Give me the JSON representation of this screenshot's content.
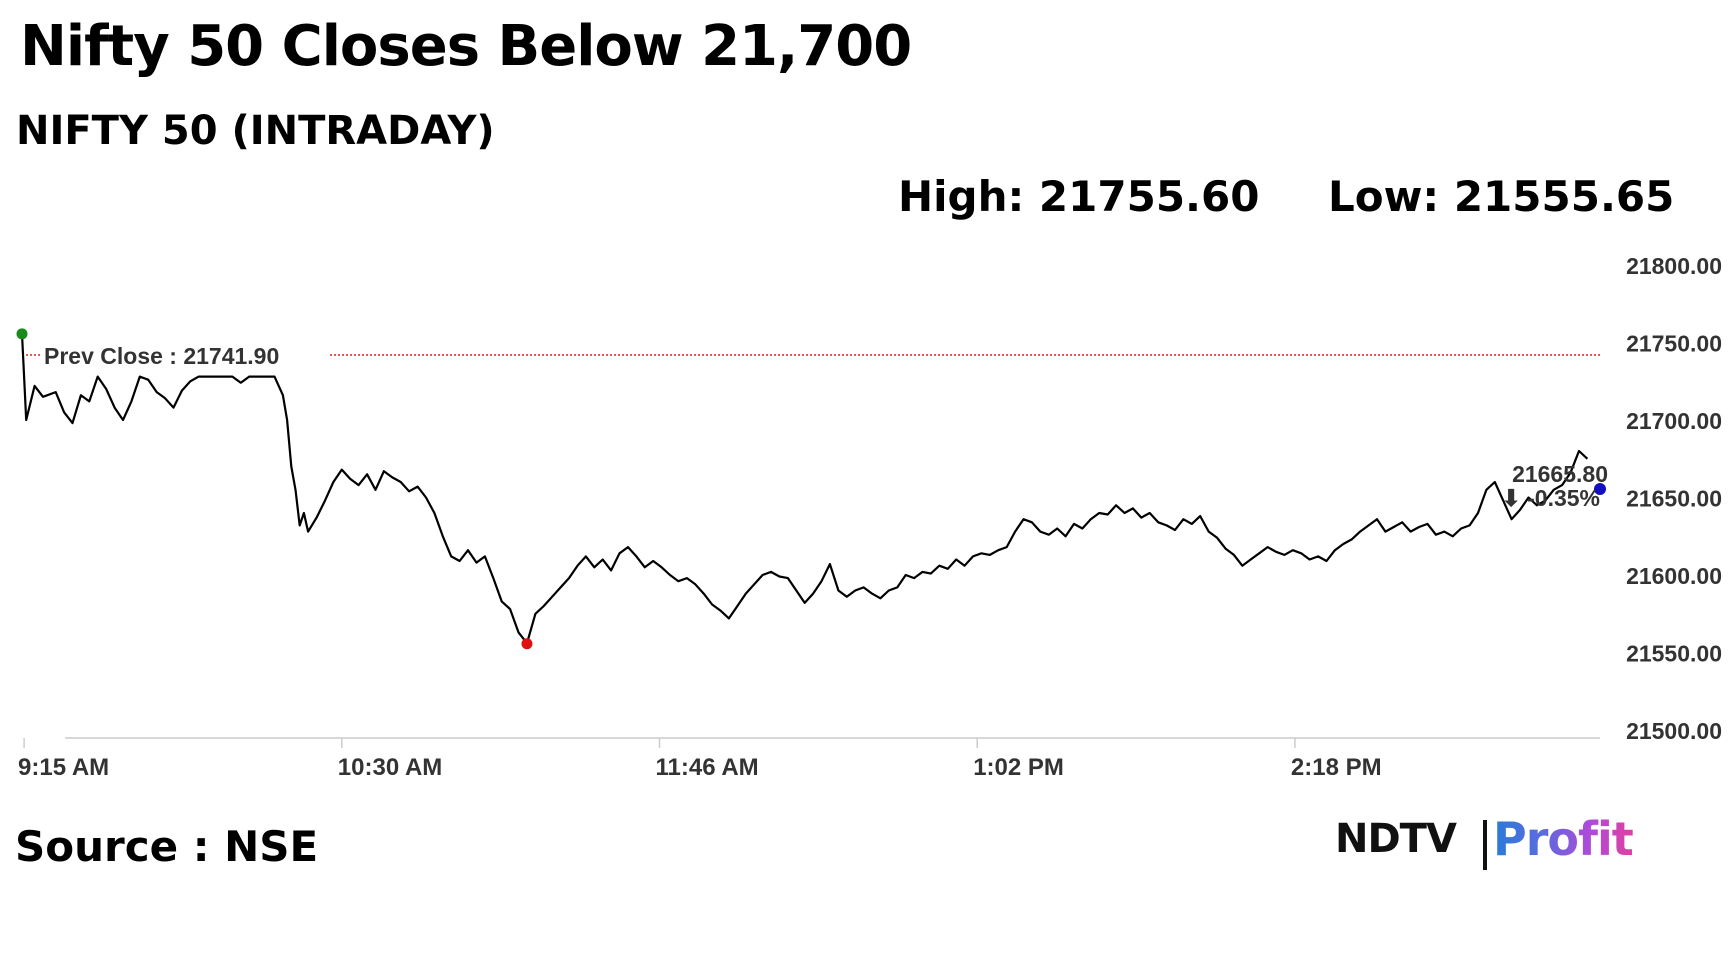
{
  "title": "Nifty 50 Closes Below 21,700",
  "subtitle": "NIFTY 50 (INTRADAY)",
  "high_label": "High: 21755.60",
  "low_label": "Low: 21555.65",
  "source": "Source : NSE",
  "logo": {
    "part1": "NDTV",
    "part2": "Profit"
  },
  "colors": {
    "line": "#000000",
    "prev_close": "#d62020",
    "high_dot": "#1a8a1a",
    "low_dot": "#e01010",
    "last_dot": "#1010c0",
    "change": "#d40000"
  },
  "chart_data": {
    "type": "line",
    "title": "NIFTY 50 (INTRADAY)",
    "xlabel": "",
    "ylabel": "",
    "ylim": [
      21500,
      21800
    ],
    "x_ticks": [
      "9:15 AM",
      "10:30 AM",
      "11:46 AM",
      "1:02 PM",
      "2:18 PM"
    ],
    "y_ticks": [
      "21800.00",
      "21750.00",
      "21700.00",
      "21650.00",
      "21600.00",
      "21550.00",
      "21500.00"
    ],
    "xlim_minutes": [
      0,
      375
    ],
    "prev_close": 21741.9,
    "prev_close_label": "Prev Close : 21741.90",
    "high": 21755.6,
    "low": 21555.65,
    "last_value": 21665.8,
    "last_label": "21665.80",
    "change_label": "⬇ -0.35%",
    "grid": false,
    "series": [
      {
        "values": [
          [
            0,
            21755.6
          ],
          [
            1,
            21700
          ],
          [
            3,
            21722
          ],
          [
            5,
            21715
          ],
          [
            8,
            21718
          ],
          [
            10,
            21705
          ],
          [
            12,
            21698
          ],
          [
            14,
            21716
          ],
          [
            16,
            21712
          ],
          [
            18,
            21728
          ],
          [
            20,
            21720
          ],
          [
            22,
            21708
          ],
          [
            24,
            21700
          ],
          [
            26,
            21712
          ],
          [
            28,
            21728
          ],
          [
            30,
            21726
          ],
          [
            32,
            21718
          ],
          [
            34,
            21714
          ],
          [
            36,
            21708
          ],
          [
            38,
            21719
          ],
          [
            40,
            21725
          ],
          [
            42,
            21728
          ],
          [
            44,
            21728
          ],
          [
            46,
            21728
          ],
          [
            48,
            21728
          ],
          [
            50,
            21728
          ],
          [
            52,
            21724
          ],
          [
            54,
            21728
          ],
          [
            56,
            21728
          ],
          [
            58,
            21728
          ],
          [
            60,
            21728
          ],
          [
            62,
            21716
          ],
          [
            63,
            21700
          ],
          [
            64,
            21670
          ],
          [
            65,
            21655
          ],
          [
            66,
            21632
          ],
          [
            67,
            21640
          ],
          [
            68,
            21628
          ],
          [
            70,
            21637
          ],
          [
            72,
            21648
          ],
          [
            74,
            21660
          ],
          [
            76,
            21668
          ],
          [
            78,
            21662
          ],
          [
            80,
            21658
          ],
          [
            82,
            21665
          ],
          [
            84,
            21655
          ],
          [
            86,
            21667
          ],
          [
            88,
            21663
          ],
          [
            90,
            21660
          ],
          [
            92,
            21654
          ],
          [
            94,
            21657
          ],
          [
            96,
            21650
          ],
          [
            98,
            21640
          ],
          [
            100,
            21625
          ],
          [
            102,
            21612
          ],
          [
            104,
            21609
          ],
          [
            106,
            21616
          ],
          [
            108,
            21608
          ],
          [
            110,
            21612
          ],
          [
            112,
            21598
          ],
          [
            114,
            21583
          ],
          [
            116,
            21578
          ],
          [
            118,
            21563
          ],
          [
            120,
            21556
          ],
          [
            122,
            21575
          ],
          [
            124,
            21580
          ],
          [
            126,
            21586
          ],
          [
            128,
            21592
          ],
          [
            130,
            21598
          ],
          [
            132,
            21606
          ],
          [
            134,
            21612
          ],
          [
            136,
            21605
          ],
          [
            138,
            21610
          ],
          [
            140,
            21603
          ],
          [
            142,
            21614
          ],
          [
            144,
            21618
          ],
          [
            146,
            21612
          ],
          [
            148,
            21605
          ],
          [
            150,
            21609
          ],
          [
            152,
            21605
          ],
          [
            154,
            21600
          ],
          [
            156,
            21596
          ],
          [
            158,
            21598
          ],
          [
            160,
            21594
          ],
          [
            162,
            21588
          ],
          [
            164,
            21581
          ],
          [
            166,
            21577
          ],
          [
            168,
            21572
          ],
          [
            170,
            21580
          ],
          [
            172,
            21588
          ],
          [
            174,
            21594
          ],
          [
            176,
            21600
          ],
          [
            178,
            21602
          ],
          [
            180,
            21599
          ],
          [
            182,
            21598
          ],
          [
            184,
            21590
          ],
          [
            186,
            21582
          ],
          [
            188,
            21588
          ],
          [
            190,
            21596
          ],
          [
            192,
            21607
          ],
          [
            194,
            21590
          ],
          [
            196,
            21586
          ],
          [
            198,
            21590
          ],
          [
            200,
            21592
          ],
          [
            202,
            21588
          ],
          [
            204,
            21585
          ],
          [
            206,
            21590
          ],
          [
            208,
            21592
          ],
          [
            210,
            21600
          ],
          [
            212,
            21598
          ],
          [
            214,
            21602
          ],
          [
            216,
            21601
          ],
          [
            218,
            21606
          ],
          [
            220,
            21604
          ],
          [
            222,
            21610
          ],
          [
            224,
            21606
          ],
          [
            226,
            21612
          ],
          [
            228,
            21614
          ],
          [
            230,
            21613
          ],
          [
            232,
            21616
          ],
          [
            234,
            21618
          ],
          [
            236,
            21628
          ],
          [
            238,
            21636
          ],
          [
            240,
            21634
          ],
          [
            242,
            21628
          ],
          [
            244,
            21626
          ],
          [
            246,
            21630
          ],
          [
            248,
            21625
          ],
          [
            250,
            21633
          ],
          [
            252,
            21630
          ],
          [
            254,
            21636
          ],
          [
            256,
            21640
          ],
          [
            258,
            21639
          ],
          [
            260,
            21645
          ],
          [
            262,
            21640
          ],
          [
            264,
            21643
          ],
          [
            266,
            21637
          ],
          [
            268,
            21640
          ],
          [
            270,
            21634
          ],
          [
            272,
            21632
          ],
          [
            274,
            21629
          ],
          [
            276,
            21636
          ],
          [
            278,
            21633
          ],
          [
            280,
            21638
          ],
          [
            282,
            21628
          ],
          [
            284,
            21624
          ],
          [
            286,
            21617
          ],
          [
            288,
            21613
          ],
          [
            290,
            21606
          ],
          [
            292,
            21610
          ],
          [
            294,
            21614
          ],
          [
            296,
            21618
          ],
          [
            298,
            21615
          ],
          [
            300,
            21613
          ],
          [
            302,
            21616
          ],
          [
            304,
            21614
          ],
          [
            306,
            21610
          ],
          [
            308,
            21612
          ],
          [
            310,
            21609
          ],
          [
            312,
            21616
          ],
          [
            314,
            21620
          ],
          [
            316,
            21623
          ],
          [
            318,
            21628
          ],
          [
            320,
            21632
          ],
          [
            322,
            21636
          ],
          [
            324,
            21628
          ],
          [
            326,
            21631
          ],
          [
            328,
            21634
          ],
          [
            330,
            21628
          ],
          [
            332,
            21631
          ],
          [
            334,
            21633
          ],
          [
            336,
            21626
          ],
          [
            338,
            21628
          ],
          [
            340,
            21625
          ],
          [
            342,
            21630
          ],
          [
            344,
            21632
          ],
          [
            346,
            21640
          ],
          [
            348,
            21655
          ],
          [
            350,
            21660
          ],
          [
            352,
            21648
          ],
          [
            354,
            21636
          ],
          [
            356,
            21642
          ],
          [
            358,
            21650
          ],
          [
            360,
            21645
          ],
          [
            362,
            21648
          ],
          [
            364,
            21655
          ],
          [
            366,
            21658
          ],
          [
            368,
            21666
          ],
          [
            370,
            21680
          ],
          [
            372,
            21675
          ]
        ]
      }
    ]
  }
}
